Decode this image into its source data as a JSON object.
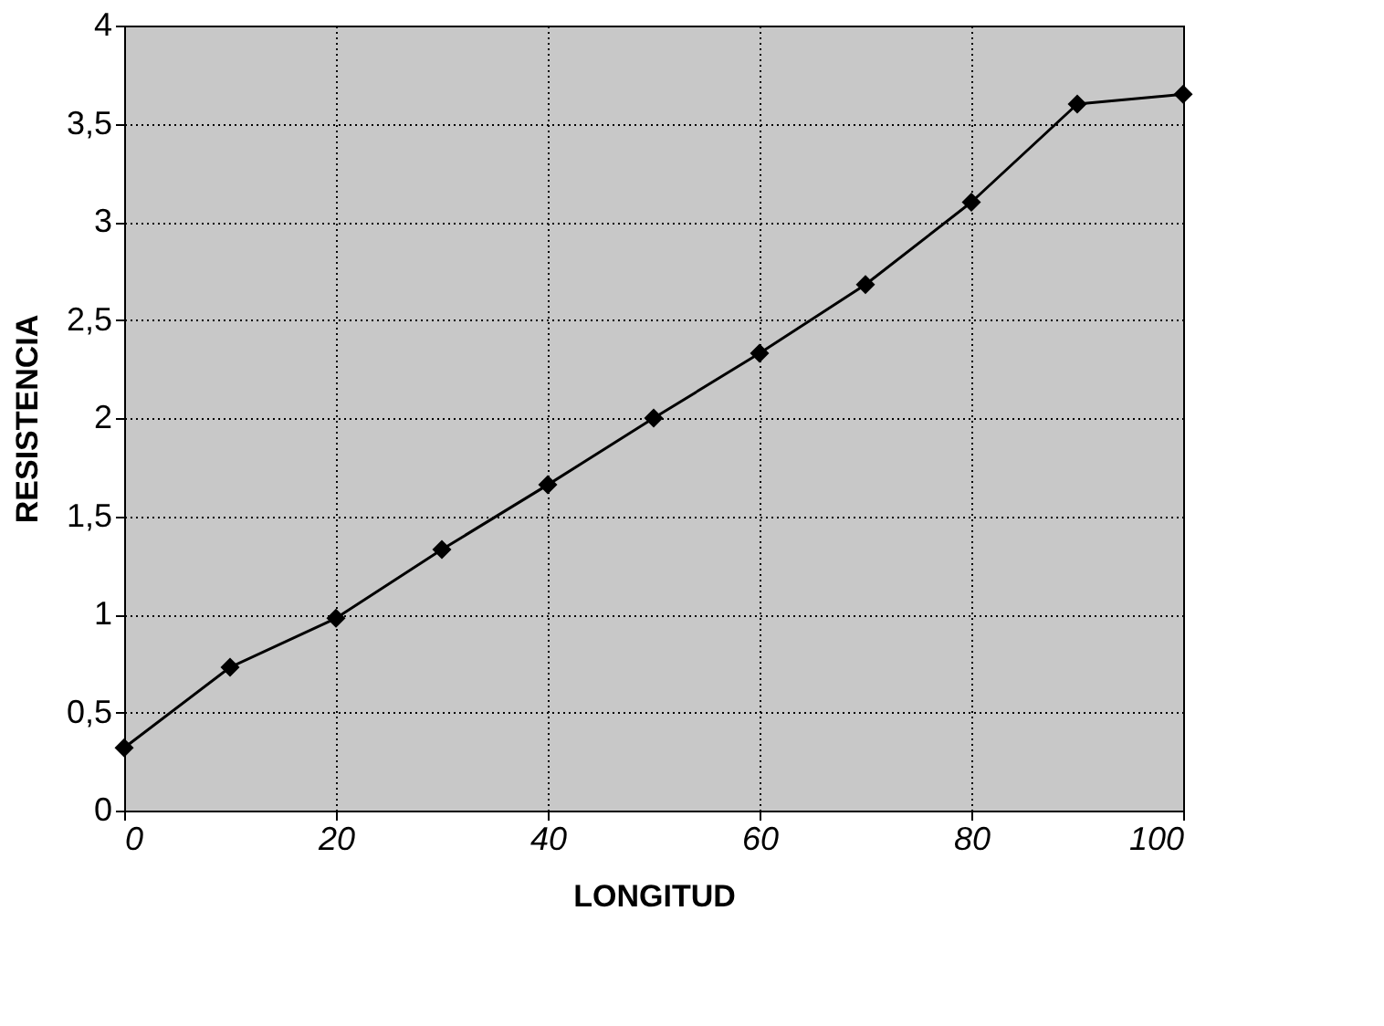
{
  "chart_data": {
    "type": "line",
    "xlabel": "LONGITUD",
    "ylabel": "RESISTENCIA",
    "x": [
      0,
      10,
      20,
      30,
      40,
      50,
      60,
      70,
      80,
      90,
      100
    ],
    "series": [
      {
        "color": "#000000",
        "values": [
          0.32,
          0.73,
          0.98,
          1.33,
          1.66,
          2.0,
          2.33,
          2.68,
          3.1,
          3.6,
          3.65
        ]
      }
    ],
    "xlim": [
      0,
      100
    ],
    "xticks": [
      0,
      20,
      40,
      60,
      80,
      100
    ],
    "ylim": [
      0,
      4
    ],
    "yticks": [
      0,
      {
        "value": 0.5,
        "label": "0,5"
      },
      1,
      {
        "value": 1.5,
        "label": "1,5"
      },
      2,
      {
        "value": 2.5,
        "label": "2,5"
      },
      3,
      {
        "value": 3.5,
        "label": "3,5"
      },
      4
    ],
    "grid": true,
    "marker": "diamond",
    "line_style": "solid"
  }
}
